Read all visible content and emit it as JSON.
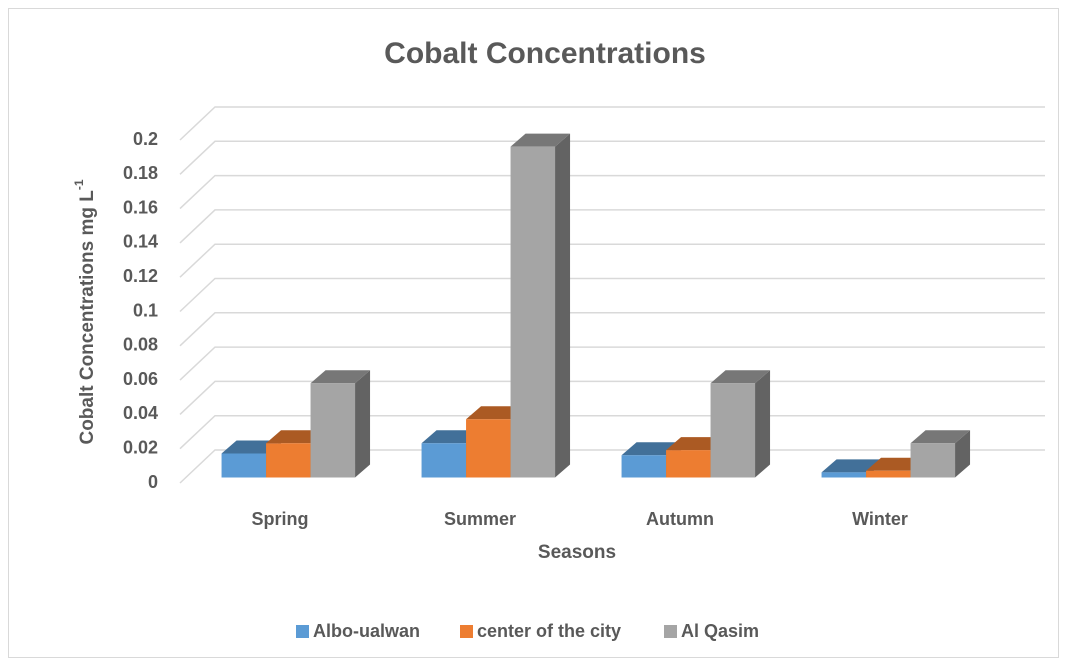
{
  "chart_data": {
    "type": "bar3d",
    "title": "Cobalt Concentrations",
    "x_label": "Seasons",
    "y_label": "Cobalt Concentrations mg L",
    "y_label_superscript": "-1",
    "categories": [
      "Spring",
      "Summer",
      "Autumn",
      "Winter"
    ],
    "series": [
      {
        "name": "Albo-ualwan",
        "color": "#5b9bd5",
        "values": [
          0.014,
          0.02,
          0.013,
          0.003
        ]
      },
      {
        "name": "center of the city",
        "color": "#ed7d31",
        "values": [
          0.02,
          0.034,
          0.016,
          0.004
        ]
      },
      {
        "name": "Al Qasim",
        "color": "#a5a5a5",
        "values": [
          0.055,
          0.193,
          0.055,
          0.02
        ]
      }
    ],
    "ylim": [
      0,
      0.2
    ],
    "yticks": [
      0,
      0.02,
      0.04,
      0.06,
      0.08,
      0.1,
      0.12,
      0.14,
      0.16,
      0.18,
      0.2
    ],
    "grid": true,
    "legend": "bottom"
  }
}
